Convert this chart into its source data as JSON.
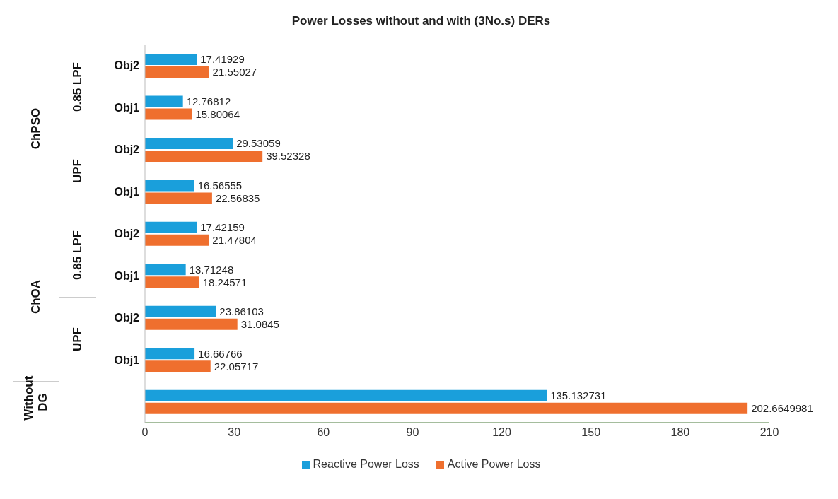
{
  "chart_data": {
    "type": "bar",
    "orientation": "horizontal",
    "title": "Power Losses without and with (3No.s) DERs",
    "categories": [
      "Obj2",
      "Obj1",
      "Obj2",
      "Obj1",
      "Obj2",
      "Obj1",
      "Obj2",
      "Obj1",
      null
    ],
    "annotations": [
      "0.85 LPF",
      "UPF",
      "0.85 LPF",
      "UPF",
      "ChPSO",
      "ChOA",
      "Without DG"
    ],
    "series": [
      {
        "name": "Reactive Power Loss",
        "color": "#1a9fdb",
        "values": [
          17.41929,
          12.76812,
          29.53059,
          16.56555,
          17.42159,
          13.71248,
          23.86103,
          16.66766,
          135.132731
        ]
      },
      {
        "name": "Active Power Loss",
        "color": "#ef6f2e",
        "values": [
          21.55027,
          15.80064,
          39.52328,
          22.56835,
          21.47804,
          18.24571,
          31.0845,
          22.05717,
          202.6649981
        ]
      }
    ],
    "xlim": [
      0,
      210
    ],
    "xticks": [
      0,
      30,
      60,
      90,
      120,
      150,
      180,
      210
    ],
    "legend": "bottom",
    "data_labels": true
  }
}
